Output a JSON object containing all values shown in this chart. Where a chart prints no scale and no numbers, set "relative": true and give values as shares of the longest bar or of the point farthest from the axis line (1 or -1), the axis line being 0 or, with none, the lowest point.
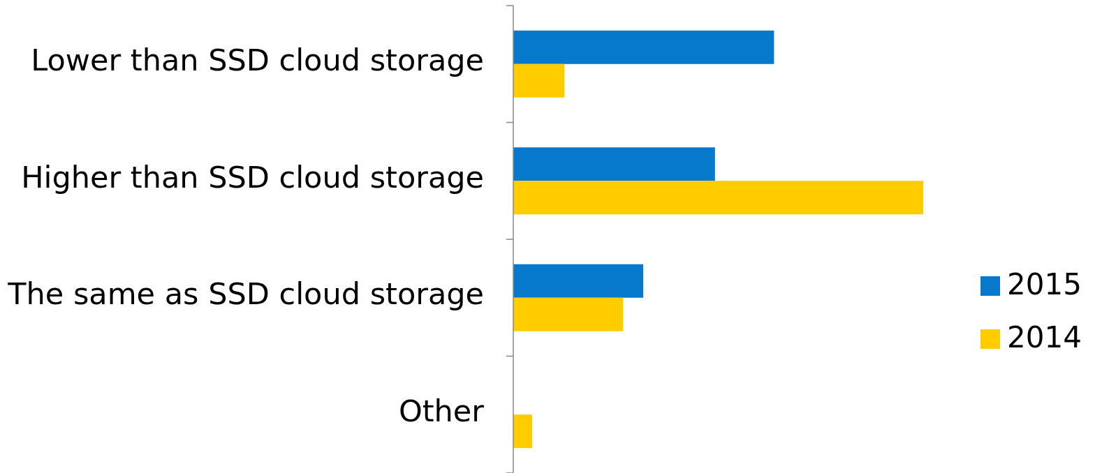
{
  "chart_data": {
    "type": "bar",
    "orientation": "horizontal",
    "relative": true,
    "legend": "right",
    "categories": [
      "Lower than SSD cloud storage",
      "Higher than SSD cloud storage",
      "The same as SSD cloud storage",
      "Other"
    ],
    "series": [
      {
        "name": "2015",
        "color": "#0779cc",
        "values": [
          0.636,
          0.492,
          0.317,
          0
        ]
      },
      {
        "name": "2014",
        "color": "#ffcc00",
        "values": [
          0.125,
          1,
          0.268,
          0.046
        ]
      }
    ]
  }
}
